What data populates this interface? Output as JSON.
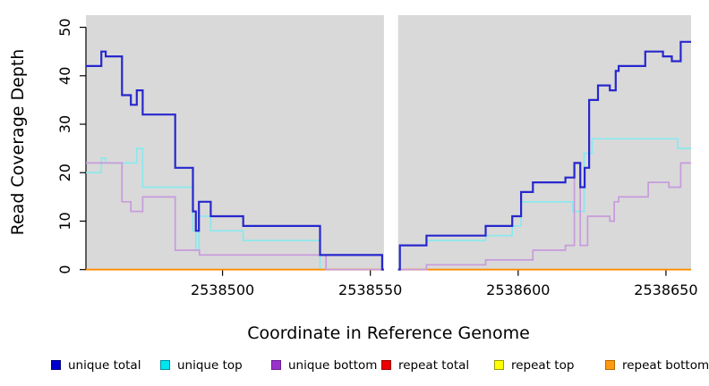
{
  "chart_data": {
    "type": "line",
    "subtype": "step",
    "title": "",
    "xlabel": "Coordinate in Reference Genome",
    "ylabel": "Read Coverage Depth",
    "plot_bg": "#D9D9D9",
    "gap_band_color": "#FFFFFF",
    "axis_color": "#000000",
    "grid": false,
    "legend_position": "bottom",
    "xlim": [
      2538453.8,
      2538658.5
    ],
    "ylim": [
      0,
      52.5
    ],
    "x_ticks": [
      "2538500",
      "2538550",
      "2538600",
      "2538650"
    ],
    "x_tick_values": [
      2538500,
      2538550,
      2538600,
      2538650
    ],
    "y_ticks": [
      "0",
      "10",
      "20",
      "30",
      "40",
      "50"
    ],
    "y_tick_values": [
      0,
      10,
      20,
      30,
      40,
      50
    ],
    "gap_region": {
      "from": 2538554.6,
      "to": 2538559.4
    },
    "legend": [
      {
        "label": "unique total",
        "fill": "#0000CD",
        "border": "#000080"
      },
      {
        "label": "unique top",
        "fill": "#00E5EE",
        "border": "#0090A0"
      },
      {
        "label": "unique bottom",
        "fill": "#9932CC",
        "border": "#691F8E"
      },
      {
        "label": "repeat total",
        "fill": "#EE0000",
        "border": "#990000"
      },
      {
        "label": "repeat top",
        "fill": "#FFFF00",
        "border": "#9B9B00"
      },
      {
        "label": "repeat bottom",
        "fill": "#FF9912",
        "border": "#B36B00"
      }
    ],
    "series": [
      {
        "name": "repeat total",
        "color": "#E03030",
        "width": 1.5,
        "segments": [
          [
            [
              2538453.8,
              0
            ],
            [
              2538554.6,
              0
            ]
          ],
          [
            [
              2538559.4,
              0
            ],
            [
              2538658.5,
              0
            ]
          ]
        ]
      },
      {
        "name": "repeat top",
        "color": "#F0F000",
        "width": 1.5,
        "segments": [
          [
            [
              2538453.8,
              0
            ],
            [
              2538554.6,
              0
            ]
          ],
          [
            [
              2538559.4,
              0
            ],
            [
              2538658.5,
              0
            ]
          ]
        ]
      },
      {
        "name": "unique top",
        "color": "#89E9EE",
        "width": 1.7,
        "segments": [
          [
            [
              2538453.8,
              20
            ],
            [
              2538459,
              23
            ],
            [
              2538460.5,
              22
            ],
            [
              2538471,
              25
            ],
            [
              2538473,
              17
            ],
            [
              2538490,
              8
            ],
            [
              2538491,
              4
            ],
            [
              2538492,
              11
            ],
            [
              2538496,
              8
            ],
            [
              2538507,
              6
            ],
            [
              2538533,
              0
            ],
            [
              2538535,
              3
            ],
            [
              2538554,
              0
            ],
            [
              2538554.6,
              0
            ]
          ],
          [
            [
              2538559.4,
              0
            ],
            [
              2538560,
              5
            ],
            [
              2538569,
              6
            ],
            [
              2538589,
              7
            ],
            [
              2538598,
              9
            ],
            [
              2538601,
              14
            ],
            [
              2538618.5,
              12
            ],
            [
              2538622.3,
              24
            ],
            [
              2538625,
              27
            ],
            [
              2538654,
              25
            ],
            [
              2538658.5,
              25
            ]
          ]
        ]
      },
      {
        "name": "repeat bottom",
        "color": "#FF8C00",
        "width": 1.8,
        "segments": [
          [
            [
              2538453.8,
              0
            ],
            [
              2538554.6,
              0
            ]
          ],
          [
            [
              2538559.4,
              0
            ],
            [
              2538658.5,
              0
            ]
          ]
        ]
      },
      {
        "name": "unique bottom",
        "color": "#C79BDC",
        "width": 1.7,
        "segments": [
          [
            [
              2538453.8,
              22
            ],
            [
              2538466,
              14
            ],
            [
              2538469,
              12
            ],
            [
              2538473,
              15
            ],
            [
              2538484,
              4
            ],
            [
              2538492.2,
              3
            ],
            [
              2538535,
              0
            ],
            [
              2538554.6,
              0
            ]
          ],
          [
            [
              2538559.4,
              0
            ],
            [
              2538569,
              1
            ],
            [
              2538589,
              2
            ],
            [
              2538605,
              4
            ],
            [
              2538616,
              5
            ],
            [
              2538619,
              22
            ],
            [
              2538621,
              5
            ],
            [
              2538623.5,
              11
            ],
            [
              2538631,
              10
            ],
            [
              2538632.5,
              14
            ],
            [
              2538634,
              15
            ],
            [
              2538644,
              18
            ],
            [
              2538651,
              17
            ],
            [
              2538655,
              22
            ],
            [
              2538658.5,
              22
            ]
          ]
        ]
      },
      {
        "name": "unique total",
        "color": "#2727CE",
        "width": 2.2,
        "segments": [
          [
            [
              2538453.8,
              42
            ],
            [
              2538459,
              45
            ],
            [
              2538460.5,
              44
            ],
            [
              2538466,
              36
            ],
            [
              2538469,
              34
            ],
            [
              2538471,
              37
            ],
            [
              2538473,
              32
            ],
            [
              2538484,
              21
            ],
            [
              2538490,
              12
            ],
            [
              2538491,
              8
            ],
            [
              2538492,
              14
            ],
            [
              2538496,
              11
            ],
            [
              2538507,
              9
            ],
            [
              2538533,
              3
            ],
            [
              2538554,
              0
            ],
            [
              2538554.6,
              0
            ]
          ],
          [
            [
              2538559.4,
              0
            ],
            [
              2538560,
              5
            ],
            [
              2538569,
              7
            ],
            [
              2538589,
              9
            ],
            [
              2538598,
              11
            ],
            [
              2538601,
              16
            ],
            [
              2538605,
              18
            ],
            [
              2538616,
              19
            ],
            [
              2538619,
              22
            ],
            [
              2538621,
              17
            ],
            [
              2538622.5,
              21
            ],
            [
              2538624,
              35
            ],
            [
              2538627,
              38
            ],
            [
              2538631,
              37
            ],
            [
              2538633,
              41
            ],
            [
              2538634,
              42
            ],
            [
              2538643,
              45
            ],
            [
              2538649,
              44
            ],
            [
              2538652,
              43
            ],
            [
              2538655,
              47
            ],
            [
              2538658.5,
              47
            ]
          ]
        ]
      }
    ]
  }
}
